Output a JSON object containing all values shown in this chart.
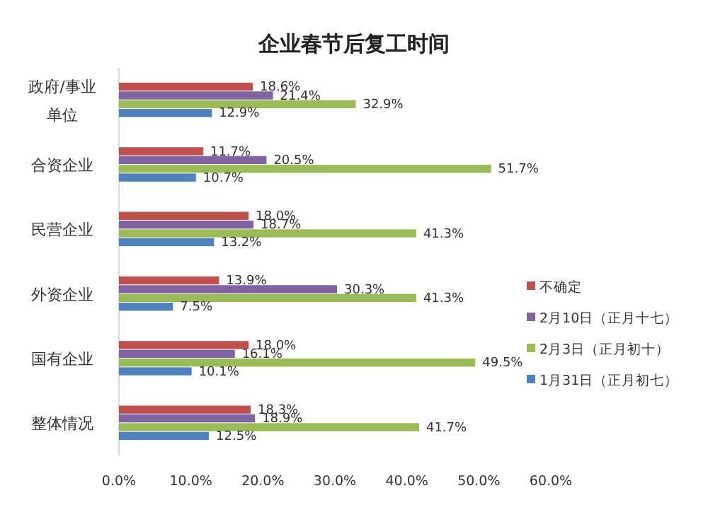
{
  "chart_data": {
    "type": "bar",
    "orientation": "horizontal",
    "title": "企业春节后复工时间",
    "categories": [
      "政府/事业单位",
      "合资企业",
      "民营企业",
      "外资企业",
      "国有企业",
      "整体情况"
    ],
    "series": [
      {
        "name": "不确定",
        "color": "#c0504d",
        "values": [
          18.6,
          11.7,
          18.0,
          13.9,
          18.0,
          18.3
        ],
        "value_labels": [
          "18.6%",
          "11.7%",
          "18.0%",
          "13.9%",
          "18.0%",
          "18.3%"
        ]
      },
      {
        "name": "2月10日（正月十七）",
        "color": "#8064a2",
        "values": [
          21.4,
          20.5,
          18.7,
          30.3,
          16.1,
          18.9
        ],
        "value_labels": [
          "21.4%",
          "20.5%",
          "18.7%",
          "30.3%",
          "16.1%",
          "18.9%"
        ]
      },
      {
        "name": "2月3日（正月初十）",
        "color": "#9bbb59",
        "values": [
          32.9,
          51.7,
          41.3,
          41.3,
          49.5,
          41.7
        ],
        "value_labels": [
          "32.9%",
          "51.7%",
          "41.3%",
          "41.3%",
          "49.5%",
          "41.7%"
        ]
      },
      {
        "name": "1月31日（正月初七）",
        "color": "#4f81bd",
        "values": [
          12.9,
          10.7,
          13.2,
          7.5,
          10.1,
          12.5
        ],
        "value_labels": [
          "12.9%",
          "10.7%",
          "13.2%",
          "7.5%",
          "10.1%",
          "12.5%"
        ]
      }
    ],
    "xlim": [
      0,
      60
    ],
    "xticks": [
      {
        "value": 0,
        "label": "0.0%"
      },
      {
        "value": 10,
        "label": "10.0%"
      },
      {
        "value": 20,
        "label": "20.0%"
      },
      {
        "value": 30,
        "label": "30.0%"
      },
      {
        "value": 40,
        "label": "40.0%"
      },
      {
        "value": 50,
        "label": "50.0%"
      },
      {
        "value": 60,
        "label": "60.0%"
      }
    ],
    "legend": "right"
  }
}
